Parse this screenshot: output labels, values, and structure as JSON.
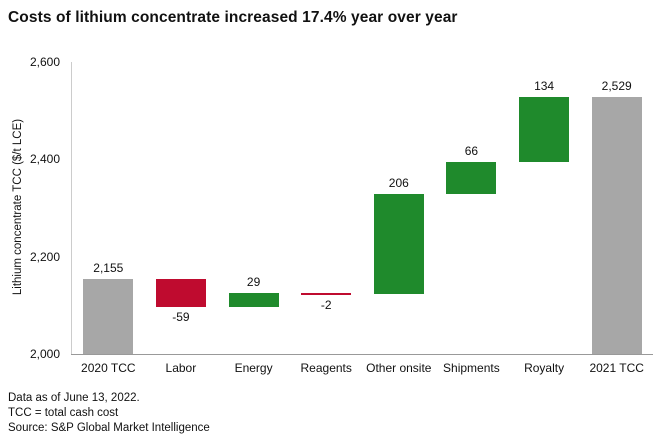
{
  "header": {
    "title": "Costs of lithium concentrate increased 17.4% year over year"
  },
  "footer": {
    "lines": [
      "Data as of June 13, 2022.",
      "TCC = total cash cost",
      "Source: S&P Global Market Intelligence"
    ]
  },
  "colors": {
    "increase": "#1f8a2c",
    "decrease": "#bf0b2f",
    "total": "#a7a7a7",
    "axis_line": "#cccccc",
    "baseline": "#999999"
  },
  "chart_data": {
    "type": "bar",
    "subtype": "waterfall",
    "title": "Costs of lithium concentrate increased 17.4% year over year",
    "xlabel": "",
    "ylabel": "Lithium concentrate TCC ($/t LCE)",
    "ylim": [
      2000,
      2600
    ],
    "grid": false,
    "legend": false,
    "yticks": [
      {
        "value": 2000,
        "label": "2,000"
      },
      {
        "value": 2200,
        "label": "2,200"
      },
      {
        "value": 2400,
        "label": "2,400"
      },
      {
        "value": 2600,
        "label": "2,600"
      }
    ],
    "categories": [
      "2020 TCC",
      "Labor",
      "Energy",
      "Reagents",
      "Other onsite",
      "Shipments",
      "Royalty",
      "2021 TCC"
    ],
    "values": [
      2155,
      -59,
      29,
      -2,
      206,
      66,
      134,
      2529
    ],
    "kinds": [
      "total",
      "delta",
      "delta",
      "delta",
      "delta",
      "delta",
      "delta",
      "total"
    ],
    "data_labels": [
      "2,155",
      "-59",
      "29",
      "-2",
      "206",
      "66",
      "134",
      "2,529"
    ],
    "cumulative": [
      2155,
      2096,
      2125,
      2123,
      2329,
      2395,
      2529,
      2529
    ]
  }
}
